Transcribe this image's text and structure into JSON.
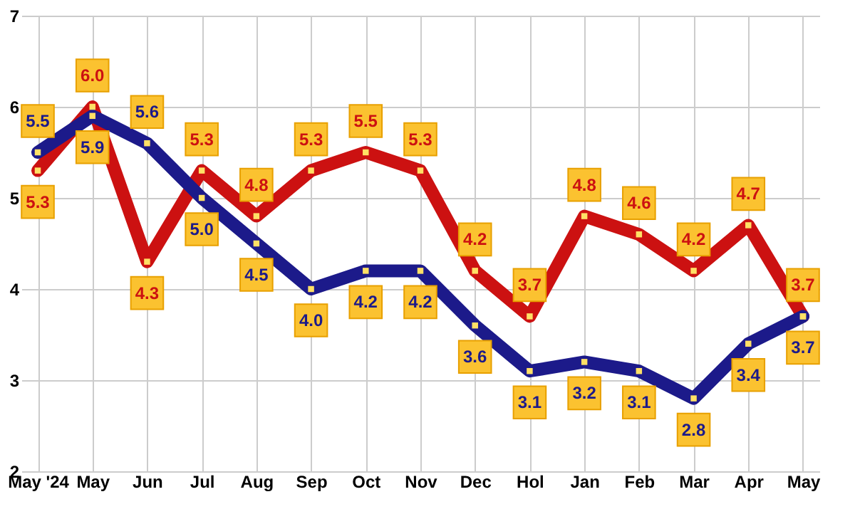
{
  "chart_data": {
    "type": "line",
    "categories": [
      "May '24",
      "May",
      "Jun",
      "Jul",
      "Aug",
      "Sep",
      "Oct",
      "Nov",
      "Dec",
      "Hol",
      "Jan",
      "Feb",
      "Mar",
      "Apr",
      "May"
    ],
    "series": [
      {
        "color": "#cc1111",
        "values": [
          5.3,
          6.0,
          4.3,
          5.3,
          4.8,
          5.3,
          5.5,
          5.3,
          4.2,
          3.7,
          4.8,
          4.6,
          4.2,
          4.7,
          3.7
        ],
        "value_labels": [
          "5.3",
          "6.0",
          "4.3",
          "5.3",
          "4.8",
          "5.3",
          "5.5",
          "5.3",
          "4.2",
          "3.7",
          "4.8",
          "4.6",
          "4.2",
          "4.7",
          "3.7"
        ]
      },
      {
        "color": "#1c1a8a",
        "values": [
          5.5,
          5.9,
          5.6,
          5.0,
          4.5,
          4.0,
          4.2,
          4.2,
          3.6,
          3.1,
          3.2,
          3.1,
          2.8,
          3.4,
          3.7
        ],
        "value_labels": [
          "5.5",
          "5.9",
          "5.6",
          "5.0",
          "4.5",
          "4.0",
          "4.2",
          "4.2",
          "3.6",
          "3.1",
          "3.2",
          "3.1",
          "2.8",
          "3.4",
          "3.7"
        ]
      }
    ],
    "ylim": [
      2,
      7
    ],
    "yticks": [
      2,
      3,
      4,
      5,
      6,
      7
    ],
    "grid": true,
    "marker": "square"
  }
}
